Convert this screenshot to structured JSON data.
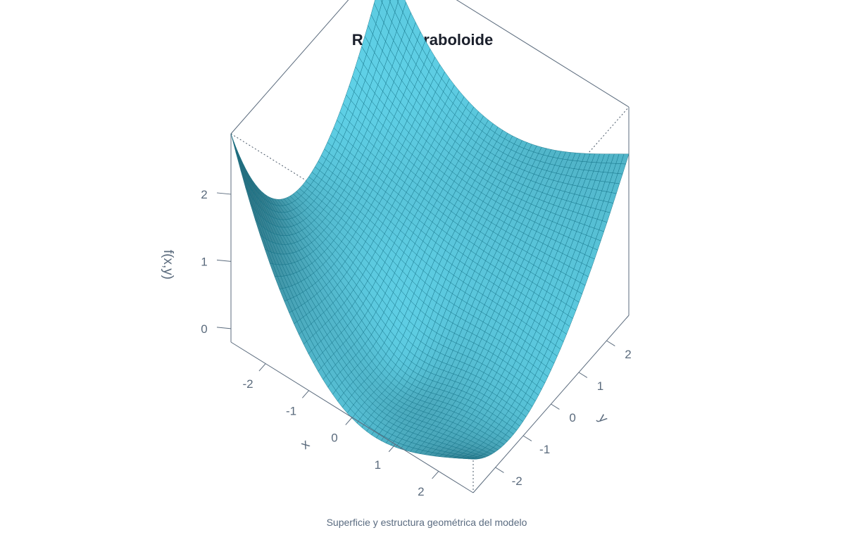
{
  "chart_data": {
    "type": "surface",
    "title": "Rango Paraboloide",
    "subtitle": "Superficie y estructura geométrica del modelo",
    "xlabel": "x",
    "ylabel": "y",
    "zlabel": "f(x,y)",
    "xlim": [
      -2.8,
      2.8
    ],
    "ylim": [
      -2.8,
      2.8
    ],
    "zlim": [
      -0.2,
      2.9
    ],
    "x_ticks": [
      "-2",
      "-1",
      "0",
      "1",
      "2"
    ],
    "y_ticks": [
      "-2",
      "-1",
      "0",
      "1",
      "2"
    ],
    "z_ticks": [
      "0",
      "1",
      "2"
    ],
    "surface": {
      "grid_n": 50,
      "corner_values": {
        "x_min_y_min": 2.9,
        "x_min_y_max": 2.9,
        "x_max_y_max": 2.2,
        "x_max_y_min": 0.3
      },
      "minimum_value": -0.2
    },
    "colors": {
      "surface_light": "#5fd0e6",
      "surface_dark": "#0c2f3a",
      "mesh": "#0f6f84",
      "box": "#5b6b7d"
    },
    "grid": false
  }
}
